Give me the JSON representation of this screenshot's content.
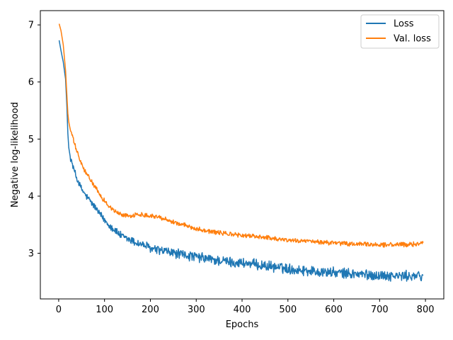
{
  "chart_data": {
    "type": "line",
    "xlabel": "Epochs",
    "ylabel": "Negative log-likelihood",
    "xlim": [
      -40,
      840
    ],
    "ylim": [
      2.2,
      7.25
    ],
    "xticks": [
      0,
      100,
      200,
      300,
      400,
      500,
      600,
      700,
      800
    ],
    "yticks": [
      3,
      4,
      5,
      6,
      7
    ],
    "grid": false,
    "legend_position": "top-right",
    "series": [
      {
        "name": "Loss",
        "color": "#1f77b4",
        "x": [
          1,
          5,
          10,
          15,
          18,
          20,
          22,
          25,
          30,
          35,
          40,
          50,
          60,
          70,
          80,
          90,
          100,
          110,
          120,
          130,
          140,
          150,
          160,
          170,
          180,
          190,
          200,
          220,
          240,
          260,
          280,
          300,
          320,
          340,
          360,
          380,
          400,
          420,
          440,
          460,
          480,
          500,
          520,
          540,
          560,
          580,
          600,
          620,
          640,
          660,
          680,
          700,
          720,
          740,
          760,
          780,
          795
        ],
        "values": [
          6.73,
          6.55,
          6.35,
          6.05,
          5.55,
          5.1,
          4.85,
          4.7,
          4.55,
          4.42,
          4.3,
          4.12,
          4.0,
          3.9,
          3.8,
          3.68,
          3.58,
          3.5,
          3.42,
          3.35,
          3.28,
          3.25,
          3.22,
          3.18,
          3.16,
          3.13,
          3.08,
          3.05,
          3.02,
          2.99,
          2.96,
          2.93,
          2.91,
          2.88,
          2.86,
          2.84,
          2.83,
          2.81,
          2.79,
          2.77,
          2.75,
          2.73,
          2.71,
          2.7,
          2.68,
          2.67,
          2.66,
          2.65,
          2.64,
          2.63,
          2.62,
          2.61,
          2.61,
          2.6,
          2.6,
          2.6,
          2.6
        ],
        "noise": 0.08
      },
      {
        "name": "Val. loss",
        "color": "#ff7f0e",
        "x": [
          1,
          5,
          10,
          15,
          18,
          20,
          22,
          25,
          30,
          35,
          40,
          50,
          60,
          70,
          80,
          90,
          100,
          110,
          120,
          130,
          140,
          150,
          160,
          170,
          180,
          190,
          200,
          220,
          240,
          260,
          280,
          300,
          320,
          340,
          360,
          380,
          400,
          420,
          440,
          460,
          480,
          500,
          520,
          540,
          560,
          580,
          600,
          620,
          640,
          660,
          680,
          700,
          720,
          740,
          760,
          780,
          795
        ],
        "values": [
          7.02,
          6.9,
          6.65,
          6.2,
          5.75,
          5.45,
          5.3,
          5.18,
          5.05,
          4.9,
          4.78,
          4.55,
          4.4,
          4.28,
          4.15,
          4.02,
          3.92,
          3.82,
          3.75,
          3.7,
          3.67,
          3.66,
          3.66,
          3.67,
          3.68,
          3.67,
          3.66,
          3.63,
          3.58,
          3.52,
          3.48,
          3.43,
          3.4,
          3.37,
          3.35,
          3.33,
          3.31,
          3.3,
          3.29,
          3.27,
          3.25,
          3.23,
          3.22,
          3.21,
          3.2,
          3.19,
          3.18,
          3.17,
          3.16,
          3.16,
          3.15,
          3.15,
          3.15,
          3.15,
          3.15,
          3.16,
          3.2
        ],
        "noise": 0.035
      }
    ]
  }
}
